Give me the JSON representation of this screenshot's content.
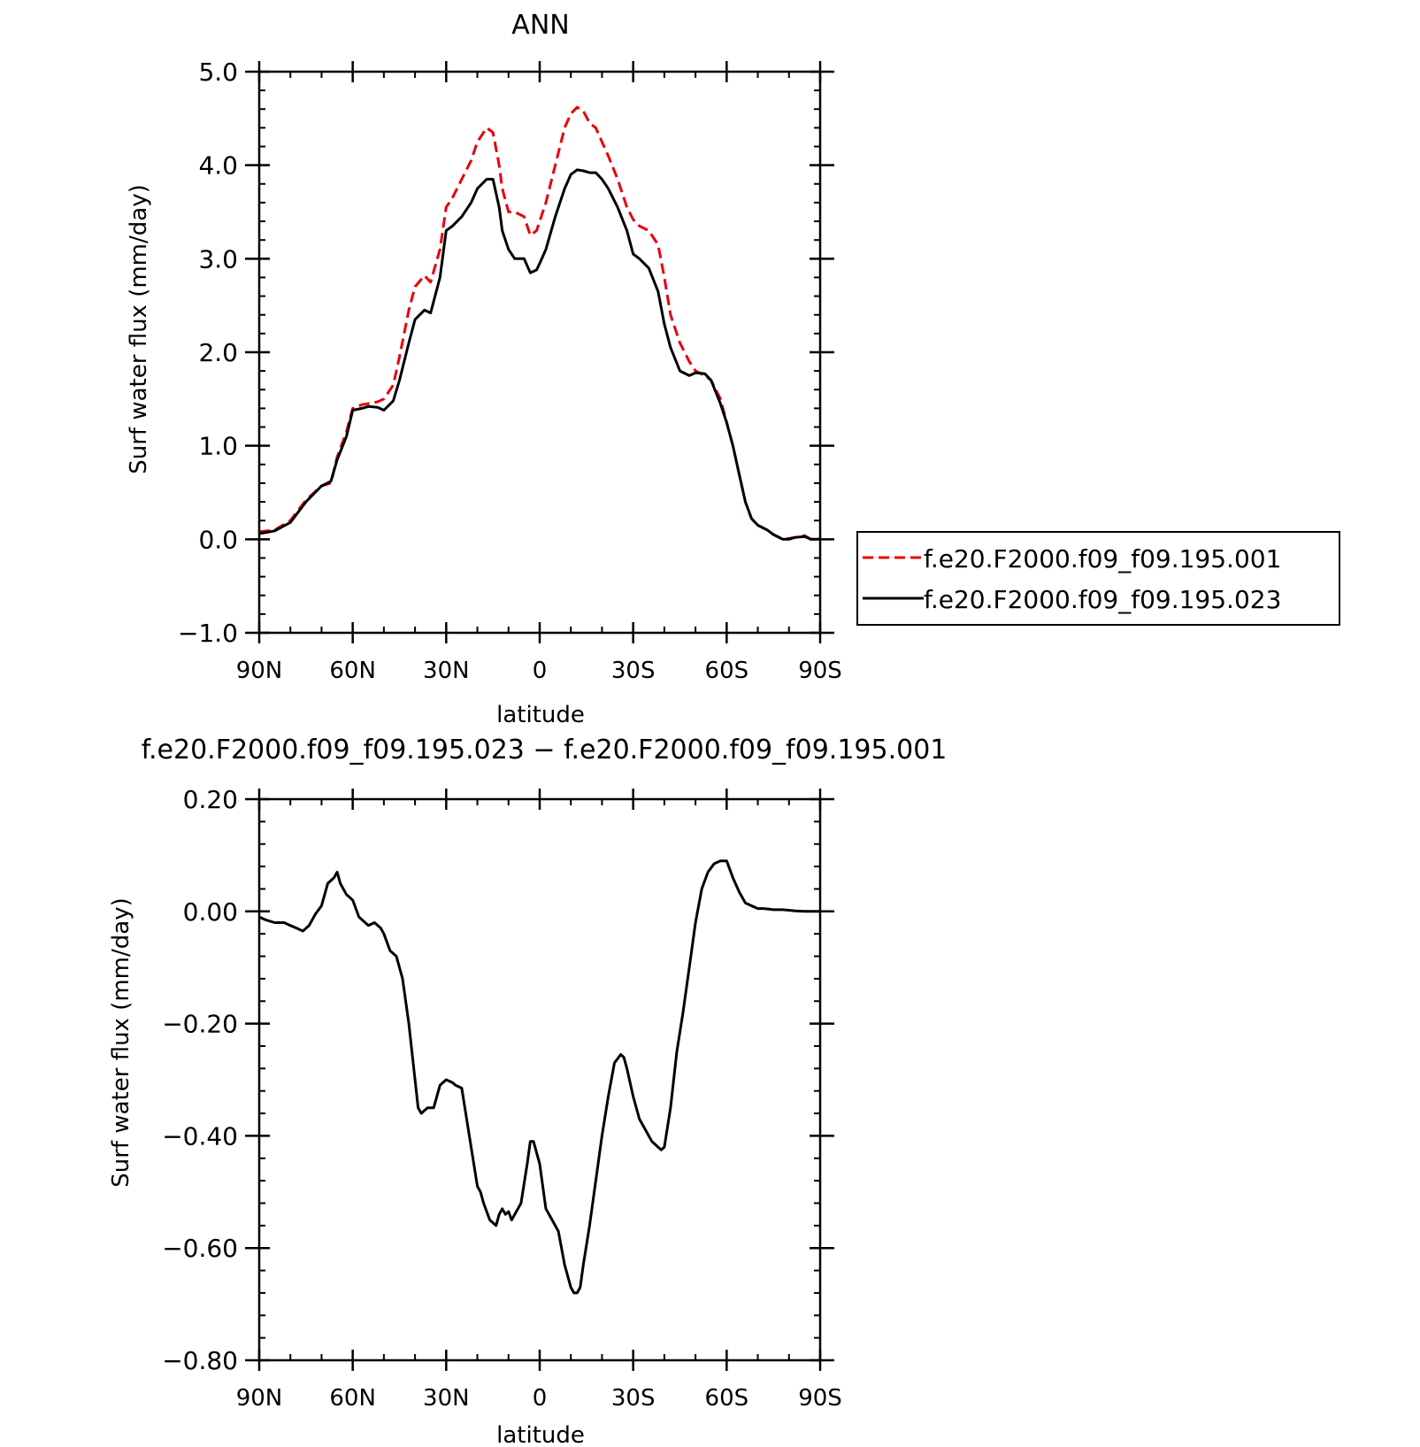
{
  "chart_data": [
    {
      "type": "line",
      "title": "ANN",
      "xlabel": "latitude",
      "ylabel": "Surf water flux (mm/day)",
      "xlim": [
        90,
        -90
      ],
      "ylim": [
        -1.0,
        5.0
      ],
      "x_ticks": [
        {
          "value": 90,
          "label": "90N"
        },
        {
          "value": 60,
          "label": "60N"
        },
        {
          "value": 30,
          "label": "30N"
        },
        {
          "value": 0,
          "label": "0"
        },
        {
          "value": -30,
          "label": "30S"
        },
        {
          "value": -60,
          "label": "60S"
        },
        {
          "value": -90,
          "label": "90S"
        }
      ],
      "y_ticks": [
        {
          "value": -1.0,
          "label": "−1.0"
        },
        {
          "value": 0.0,
          "label": "0.0"
        },
        {
          "value": 1.0,
          "label": "1.0"
        },
        {
          "value": 2.0,
          "label": "2.0"
        },
        {
          "value": 3.0,
          "label": "3.0"
        },
        {
          "value": 4.0,
          "label": "4.0"
        },
        {
          "value": 5.0,
          "label": "5.0"
        }
      ],
      "legend_position": "right",
      "series": [
        {
          "name": "f.e20.F2000.f09_f09.195.001",
          "color": "#e8000b",
          "dash": "dashed",
          "x": [
            90,
            85,
            80,
            75,
            70,
            67,
            65,
            62,
            60,
            57,
            55,
            52,
            50,
            47,
            45,
            42,
            40,
            37,
            35,
            32,
            30,
            28,
            25,
            22,
            20,
            17,
            15,
            13,
            12,
            10,
            8,
            5,
            3,
            1,
            0,
            -2,
            -5,
            -8,
            -10,
            -12,
            -14,
            -16,
            -18,
            -20,
            -22,
            -25,
            -28,
            -30,
            -32,
            -35,
            -38,
            -40,
            -42,
            -45,
            -48,
            -50,
            -53,
            -55,
            -58,
            -60,
            -62,
            -64,
            -66,
            -68,
            -70,
            -73,
            -75,
            -78,
            -80,
            -82,
            -85,
            -87,
            -90
          ],
          "y": [
            0.08,
            0.1,
            0.2,
            0.42,
            0.57,
            0.6,
            0.88,
            1.15,
            1.4,
            1.44,
            1.45,
            1.47,
            1.5,
            1.65,
            1.95,
            2.45,
            2.7,
            2.82,
            2.75,
            3.1,
            3.55,
            3.65,
            3.85,
            4.05,
            4.25,
            4.4,
            4.35,
            4.0,
            3.75,
            3.5,
            3.5,
            3.45,
            3.25,
            3.3,
            3.4,
            3.6,
            4.0,
            4.4,
            4.55,
            4.62,
            4.58,
            4.45,
            4.4,
            4.25,
            4.1,
            3.85,
            3.55,
            3.42,
            3.35,
            3.3,
            3.15,
            2.8,
            2.4,
            2.1,
            1.9,
            1.8,
            1.75,
            1.7,
            1.5,
            1.25,
            1.0,
            0.7,
            0.4,
            0.22,
            0.15,
            0.1,
            0.05,
            0.0,
            0.01,
            0.02,
            0.04,
            0.0,
            0.0
          ]
        },
        {
          "name": "f.e20.F2000.f09_f09.195.023",
          "color": "#000000",
          "dash": "solid",
          "x": [
            90,
            85,
            80,
            75,
            70,
            67,
            65,
            62,
            60,
            57,
            55,
            52,
            50,
            47,
            45,
            42,
            40,
            37,
            35,
            32,
            30,
            28,
            25,
            22,
            20,
            17,
            15,
            13,
            12,
            10,
            8,
            5,
            3,
            1,
            0,
            -2,
            -5,
            -8,
            -10,
            -12,
            -14,
            -16,
            -18,
            -20,
            -22,
            -25,
            -28,
            -30,
            -32,
            -35,
            -38,
            -40,
            -42,
            -45,
            -48,
            -50,
            -53,
            -55,
            -58,
            -60,
            -62,
            -64,
            -66,
            -68,
            -70,
            -73,
            -75,
            -78,
            -80,
            -82,
            -85,
            -87,
            -90
          ],
          "y": [
            0.06,
            0.09,
            0.18,
            0.4,
            0.57,
            0.62,
            0.85,
            1.1,
            1.38,
            1.4,
            1.42,
            1.41,
            1.38,
            1.48,
            1.7,
            2.1,
            2.35,
            2.45,
            2.42,
            2.8,
            3.3,
            3.35,
            3.45,
            3.6,
            3.75,
            3.85,
            3.85,
            3.55,
            3.3,
            3.1,
            3.0,
            3.0,
            2.85,
            2.88,
            2.95,
            3.1,
            3.45,
            3.75,
            3.9,
            3.95,
            3.94,
            3.92,
            3.92,
            3.85,
            3.75,
            3.55,
            3.3,
            3.05,
            3.0,
            2.9,
            2.65,
            2.3,
            2.05,
            1.8,
            1.75,
            1.78,
            1.77,
            1.7,
            1.45,
            1.25,
            1.0,
            0.7,
            0.4,
            0.22,
            0.15,
            0.1,
            0.05,
            0.0,
            0.0,
            0.02,
            0.03,
            0.0,
            0.0
          ]
        }
      ]
    },
    {
      "type": "line",
      "title": "f.e20.F2000.f09_f09.195.023 − f.e20.F2000.f09_f09.195.001",
      "xlabel": "latitude",
      "ylabel": "Surf water flux (mm/day)",
      "xlim": [
        90,
        -90
      ],
      "ylim": [
        -0.8,
        0.2
      ],
      "x_ticks": [
        {
          "value": 90,
          "label": "90N"
        },
        {
          "value": 60,
          "label": "60N"
        },
        {
          "value": 30,
          "label": "30N"
        },
        {
          "value": 0,
          "label": "0"
        },
        {
          "value": -30,
          "label": "30S"
        },
        {
          "value": -60,
          "label": "60S"
        },
        {
          "value": -90,
          "label": "90S"
        }
      ],
      "y_ticks": [
        {
          "value": -0.8,
          "label": "−0.80"
        },
        {
          "value": -0.6,
          "label": "−0.60"
        },
        {
          "value": -0.4,
          "label": "−0.40"
        },
        {
          "value": -0.2,
          "label": "−0.20"
        },
        {
          "value": 0.0,
          "label": "0.00"
        },
        {
          "value": 0.2,
          "label": "0.20"
        }
      ],
      "series": [
        {
          "color": "#000000",
          "dash": "solid",
          "x": [
            90,
            88,
            85,
            82,
            80,
            78,
            76,
            74,
            72,
            70,
            68,
            66,
            65,
            64,
            62,
            60,
            58,
            56,
            55,
            53,
            51,
            50,
            48,
            46,
            44,
            42,
            40,
            39,
            38,
            36,
            34,
            32,
            30,
            28,
            27,
            25,
            22,
            20,
            19,
            18,
            16,
            14,
            13,
            12,
            11,
            10,
            9,
            8,
            6,
            4,
            3,
            2,
            0,
            -2,
            -4,
            -6,
            -8,
            -10,
            -11,
            -12,
            -13,
            -14,
            -16,
            -18,
            -20,
            -22,
            -24,
            -26,
            -27,
            -28,
            -30,
            -32,
            -34,
            -36,
            -38,
            -39,
            -40,
            -42,
            -44,
            -46,
            -48,
            -50,
            -52,
            -54,
            -56,
            -58,
            -60,
            -62,
            -64,
            -66,
            -68,
            -70,
            -72,
            -75,
            -78,
            -80,
            -82,
            -85,
            -88,
            -90
          ],
          "y": [
            -0.01,
            -0.015,
            -0.02,
            -0.02,
            -0.025,
            -0.03,
            -0.035,
            -0.025,
            -0.005,
            0.01,
            0.05,
            0.06,
            0.07,
            0.05,
            0.03,
            0.02,
            -0.01,
            -0.02,
            -0.025,
            -0.02,
            -0.03,
            -0.04,
            -0.07,
            -0.08,
            -0.12,
            -0.2,
            -0.3,
            -0.35,
            -0.36,
            -0.35,
            -0.35,
            -0.31,
            -0.3,
            -0.305,
            -0.31,
            -0.315,
            -0.42,
            -0.49,
            -0.5,
            -0.52,
            -0.55,
            -0.56,
            -0.54,
            -0.53,
            -0.54,
            -0.535,
            -0.55,
            -0.54,
            -0.52,
            -0.45,
            -0.41,
            -0.41,
            -0.45,
            -0.53,
            -0.55,
            -0.57,
            -0.63,
            -0.67,
            -0.68,
            -0.68,
            -0.67,
            -0.63,
            -0.56,
            -0.48,
            -0.4,
            -0.33,
            -0.27,
            -0.255,
            -0.26,
            -0.28,
            -0.33,
            -0.37,
            -0.39,
            -0.41,
            -0.42,
            -0.425,
            -0.42,
            -0.35,
            -0.25,
            -0.18,
            -0.1,
            -0.02,
            0.04,
            0.07,
            0.085,
            0.09,
            0.09,
            0.06,
            0.035,
            0.015,
            0.01,
            0.005,
            0.005,
            0.003,
            0.003,
            0.002,
            0.001,
            0.0,
            0.0,
            0.0
          ]
        }
      ]
    }
  ]
}
